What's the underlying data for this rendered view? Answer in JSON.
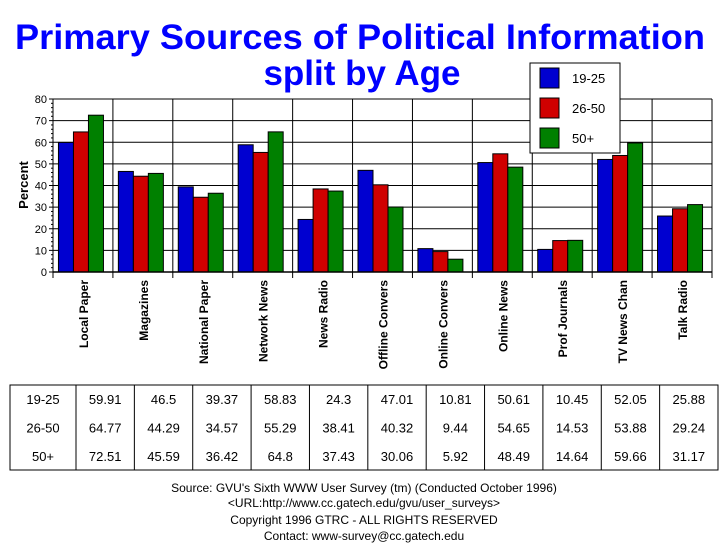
{
  "chart_data": {
    "type": "bar",
    "title": "Primary Sources of Political Information",
    "subtitle": "split by Age",
    "ylabel": "Percent",
    "xlabel": "",
    "ylim": [
      0,
      80
    ],
    "yticks": [
      0,
      10,
      20,
      30,
      40,
      50,
      60,
      70,
      80
    ],
    "grid": true,
    "legend_placement": "top-right",
    "categories": [
      "Local Paper",
      "Magazines",
      "National Paper",
      "Network News",
      "News Radio",
      "Offline Convers",
      "Online Convers",
      "Online News",
      "Prof Journals",
      "TV News Chan",
      "Talk Radio"
    ],
    "series": [
      {
        "name": "19-25",
        "color": "#0000d0",
        "values": [
          59.91,
          46.5,
          39.37,
          58.83,
          24.3,
          47.01,
          10.81,
          50.61,
          10.45,
          52.05,
          25.88
        ]
      },
      {
        "name": "26-50",
        "color": "#d00000",
        "values": [
          64.77,
          44.29,
          34.57,
          55.29,
          38.41,
          40.32,
          9.44,
          54.65,
          14.53,
          53.88,
          29.24
        ]
      },
      {
        "name": "50+",
        "color": "#008000",
        "values": [
          72.51,
          45.59,
          36.42,
          64.8,
          37.43,
          30.06,
          5.92,
          48.49,
          14.64,
          59.66,
          31.17
        ]
      }
    ]
  },
  "footer": {
    "source": "Source: GVU's Sixth WWW User Survey (tm) (Conducted October 1996)",
    "url": "<URL:http://www.cc.gatech.edu/gvu/user_surveys>",
    "copyright": "Copyright 1996 GTRC - ALL RIGHTS RESERVED",
    "contact": "Contact: www-survey@cc.gatech.edu"
  },
  "colors": {
    "title": "#0000ff"
  }
}
